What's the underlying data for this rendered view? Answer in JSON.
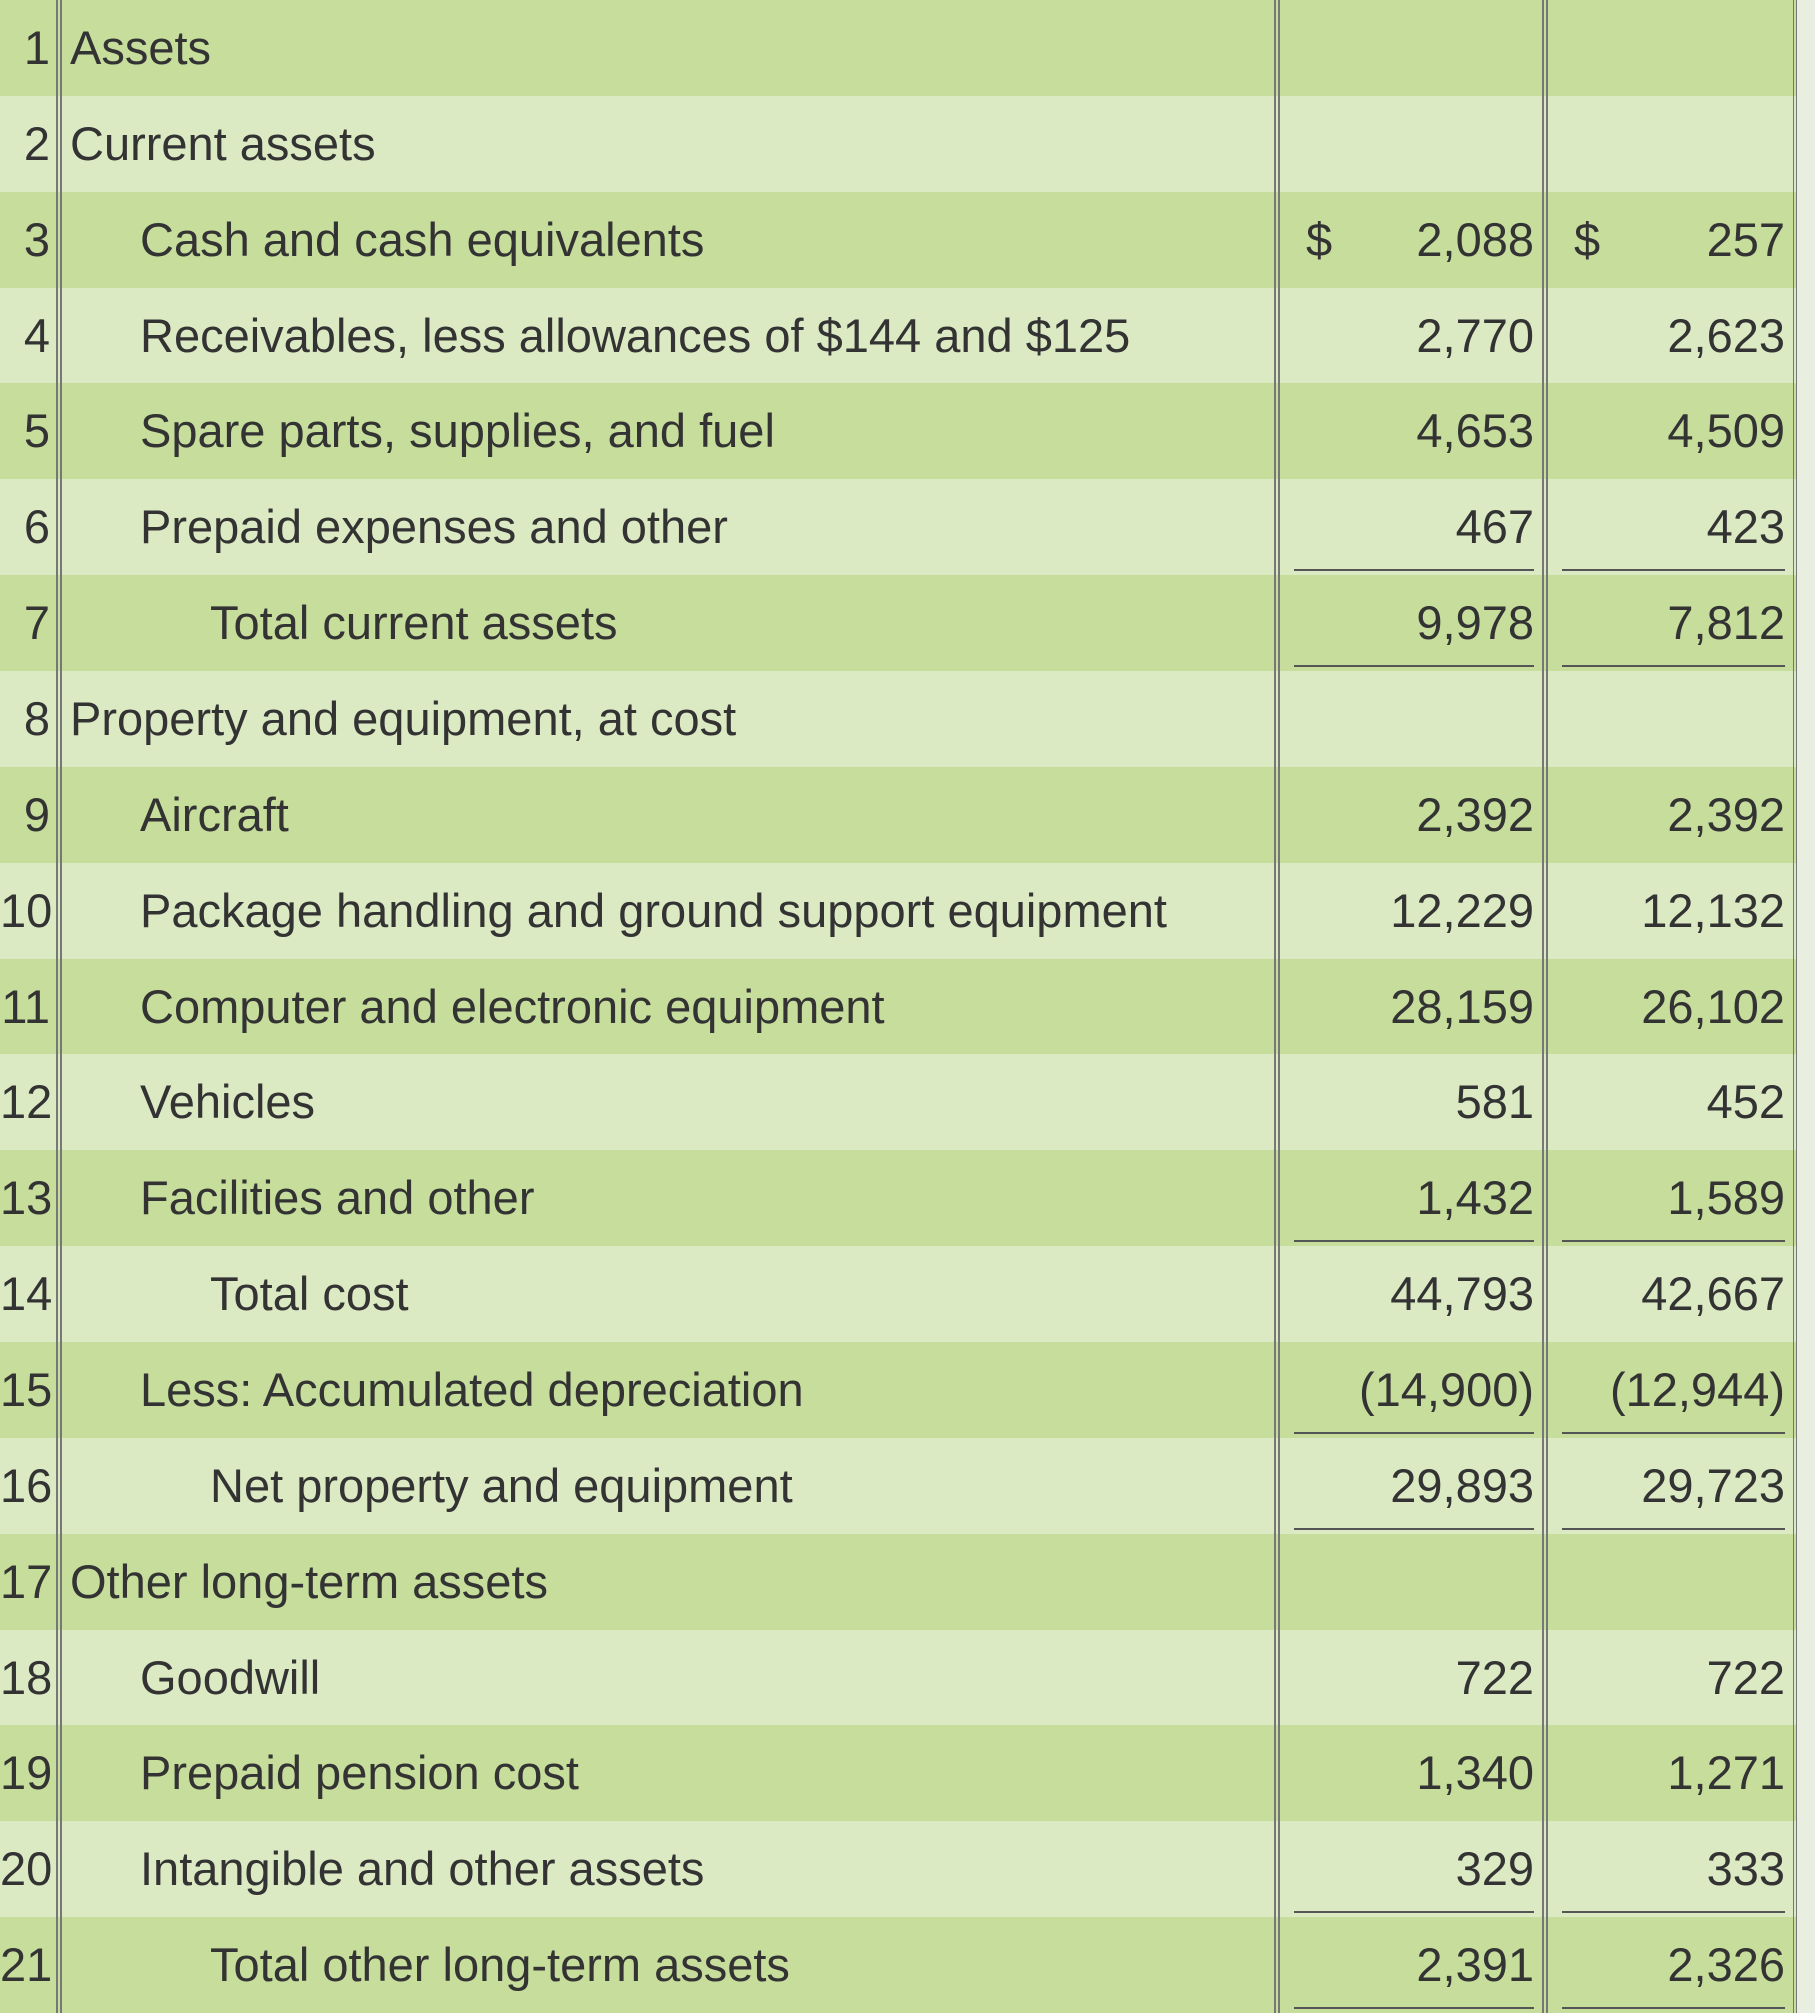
{
  "table": {
    "rows": [
      {
        "num": "1",
        "label": "Assets"
      },
      {
        "num": "2",
        "label": "Current assets"
      },
      {
        "num": "3",
        "label": "Cash and cash equivalents",
        "currency_1": "$",
        "amount_1": "2,088",
        "currency_2": "$",
        "amount_2": "257"
      },
      {
        "num": "4",
        "label": "Receivables, less allowances of $144 and $125",
        "amount_1": "2,770",
        "amount_2": "2,623"
      },
      {
        "num": "5",
        "label": "Spare parts, supplies, and fuel",
        "amount_1": "4,653",
        "amount_2": "4,509"
      },
      {
        "num": "6",
        "label": "Prepaid expenses and other",
        "amount_1": "467",
        "amount_2": "423"
      },
      {
        "num": "7",
        "label": "Total current assets",
        "amount_1": "9,978",
        "amount_2": "7,812"
      },
      {
        "num": "8",
        "label": "Property and equipment, at cost"
      },
      {
        "num": "9",
        "label": "Aircraft",
        "amount_1": "2,392",
        "amount_2": "2,392"
      },
      {
        "num": "10",
        "label": "Package handling and ground support equipment",
        "amount_1": "12,229",
        "amount_2": "12,132"
      },
      {
        "num": "11",
        "label": "Computer and electronic equipment",
        "amount_1": "28,159",
        "amount_2": "26,102"
      },
      {
        "num": "12",
        "label": "Vehicles",
        "amount_1": "581",
        "amount_2": "452"
      },
      {
        "num": "13",
        "label": "Facilities and other",
        "amount_1": "1,432",
        "amount_2": "1,589"
      },
      {
        "num": "14",
        "label": "Total cost",
        "amount_1": "44,793",
        "amount_2": "42,667"
      },
      {
        "num": "15",
        "label": "Less: Accumulated depreciation",
        "amount_1": "(14,900)",
        "amount_2": "(12,944)"
      },
      {
        "num": "16",
        "label": "Net property and equipment",
        "amount_1": "29,893",
        "amount_2": "29,723"
      },
      {
        "num": "17",
        "label": "Other long-term assets"
      },
      {
        "num": "18",
        "label": "Goodwill",
        "amount_1": "722",
        "amount_2": "722"
      },
      {
        "num": "19",
        "label": "Prepaid pension cost",
        "amount_1": "1,340",
        "amount_2": "1,271"
      },
      {
        "num": "20",
        "label": "Intangible and other assets",
        "amount_1": "329",
        "amount_2": "333"
      },
      {
        "num": "21",
        "label": "Total other long-term assets",
        "amount_1": "2,391",
        "amount_2": "2,326"
      }
    ]
  }
}
